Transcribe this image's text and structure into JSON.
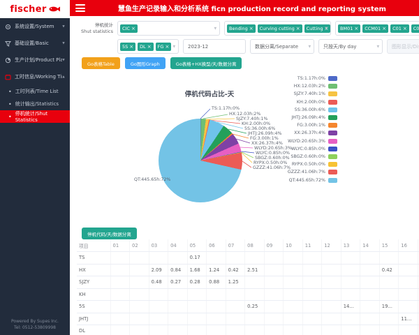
{
  "brand": {
    "logo_text": "fischer",
    "red": "#e8000d"
  },
  "header": {
    "title": "慧鱼生产记录输入和分析系统 ficn production record and reporting system"
  },
  "sidebar": {
    "items": [
      {
        "label": "系统设置/System"
      },
      {
        "label": "基础设置/Basic"
      },
      {
        "label": "生产计划/Product Plan"
      },
      {
        "label": "工时信息/Working Time"
      }
    ],
    "subitems": [
      {
        "label": "工时列表/Time List",
        "active": false
      },
      {
        "label": "统计输出/Statistics",
        "active": false
      },
      {
        "label": "停机统计/Shut Statistics",
        "active": true
      }
    ],
    "footer_line1": "Powered By Supes Inc.",
    "footer_line2": "Tel: 0512-53809998"
  },
  "filters": {
    "label_line1": "停机统计",
    "label_line2": "Shut statistics",
    "code_chips": [
      {
        "label": "CIC",
        "close": true
      }
    ],
    "process_chips": [
      {
        "label": "Bending",
        "close": true
      },
      {
        "label": "Curving cutting",
        "close": true
      },
      {
        "label": "Cutting",
        "close": true
      },
      {
        "label": "F",
        "close": false
      }
    ],
    "machine_chips": [
      {
        "label": "BM01",
        "close": true
      },
      {
        "label": "CCM01",
        "close": true
      },
      {
        "label": "C01",
        "close": true
      },
      {
        "label": "C02",
        "close": true
      }
    ],
    "shift_chips": [
      {
        "label": "5S",
        "close": true
      },
      {
        "label": "DL",
        "close": true
      },
      {
        "label": "FG",
        "close": true
      }
    ],
    "month_value": "2023-12",
    "separate_value": "数据分离/Separate",
    "byday_value": "只按天/By day",
    "display_placeholder": "图形显示/Display graph"
  },
  "buttons": {
    "go_table": "Go表格Table",
    "go_graph": "Go图形Graph",
    "go_table_hx": "Go表格+HX换型/天/数据分离",
    "table_section": "停机代码/天/数据分离"
  },
  "chart_data": {
    "type": "pie",
    "title": "停机代码占比-天",
    "unit": "hours",
    "legend_position": "right",
    "slices": [
      {
        "code": "TS",
        "hours": 1.17,
        "percent": 0,
        "label": "TS:1.17h:0%",
        "color": "#4e6ac8"
      },
      {
        "code": "HX",
        "hours": 12.03,
        "percent": 2,
        "label": "HX:12.03h:2%",
        "color": "#6fbf73"
      },
      {
        "code": "SJZY",
        "hours": 7.4,
        "percent": 1,
        "label": "SJZY:7.40h:1%",
        "color": "#f6c343"
      },
      {
        "code": "KH",
        "hours": 2.0,
        "percent": 0,
        "label": "KH:2.00h:0%",
        "color": "#ec5b56"
      },
      {
        "code": "5S",
        "hours": 36.0,
        "percent": 6,
        "label": "5S:36.00h:6%",
        "color": "#6fc3ea"
      },
      {
        "code": "JHTJ",
        "hours": 26.09,
        "percent": 4,
        "label": "JHTJ:26.09h:4%",
        "color": "#23a05a"
      },
      {
        "code": "FG",
        "hours": 3.0,
        "percent": 1,
        "label": "FG:3.00h:1%",
        "color": "#f5862e"
      },
      {
        "code": "XX",
        "hours": 26.37,
        "percent": 4,
        "label": "XX:26.37h:4%",
        "color": "#7e41a5"
      },
      {
        "code": "WLYD",
        "hours": 20.65,
        "percent": 3,
        "label": "WLYD:20.65h:3%",
        "color": "#e75fc3"
      },
      {
        "code": "WLYC",
        "hours": 0.85,
        "percent": 0,
        "label": "WLYC:0.85h:0%",
        "color": "#3b50c6"
      },
      {
        "code": "SBGZ",
        "hours": 0.6,
        "percent": 0,
        "label": "SBGZ:0.60h:0%",
        "color": "#8ed05c"
      },
      {
        "code": "RYPX",
        "hours": 0.5,
        "percent": 0,
        "label": "RYPX:0.50h:0%",
        "color": "#f7c234"
      },
      {
        "code": "GZZZ",
        "hours": 41.06,
        "percent": 7,
        "label": "GZZZ:41.06h:7%",
        "color": "#ec5b56"
      },
      {
        "code": "QT",
        "hours": 445.65,
        "percent": 72,
        "label": "QT:445.65h:72%",
        "color": "#73c3e6"
      }
    ]
  },
  "table": {
    "columns": [
      "项目",
      "01",
      "02",
      "03",
      "04",
      "05",
      "06",
      "07",
      "08",
      "09",
      "10",
      "11",
      "12",
      "13",
      "14",
      "15",
      "16",
      "17"
    ],
    "rows": [
      {
        "name": "TS",
        "cells": [
          "",
          "",
          "",
          "",
          "0.17",
          "",
          "",
          "",
          "",
          "",
          "",
          "",
          "",
          "",
          "",
          "",
          ""
        ]
      },
      {
        "name": "HX",
        "cells": [
          "",
          "",
          "2.09",
          "0.84",
          "1.68",
          "1.24",
          "0.42",
          "2.51",
          "",
          "",
          "",
          "",
          "",
          "",
          "0.42",
          "",
          ""
        ]
      },
      {
        "name": "SJZY",
        "cells": [
          "",
          "",
          "0.48",
          "0.27",
          "0.28",
          "0.88",
          "1.25",
          "",
          "",
          "",
          "",
          "",
          "",
          "",
          "",
          "",
          ""
        ]
      },
      {
        "name": "KH",
        "cells": [
          "",
          "",
          "",
          "",
          "",
          "",
          "",
          "",
          "",
          "",
          "",
          "",
          "",
          "",
          "",
          "",
          ""
        ]
      },
      {
        "name": "5S",
        "cells": [
          "",
          "",
          "",
          "",
          "",
          "",
          "",
          "0.25",
          "",
          "",
          "",
          "",
          "14...",
          "",
          "19...",
          "",
          ""
        ]
      },
      {
        "name": "JHTJ",
        "cells": [
          "",
          "",
          "",
          "",
          "",
          "",
          "",
          "",
          "",
          "",
          "",
          "",
          "",
          "",
          "",
          "11...",
          ""
        ]
      },
      {
        "name": "DL",
        "cells": [
          "",
          "",
          "",
          "",
          "",
          "",
          "",
          "",
          "",
          "",
          "",
          "",
          "",
          "",
          "",
          "",
          ""
        ]
      }
    ]
  }
}
